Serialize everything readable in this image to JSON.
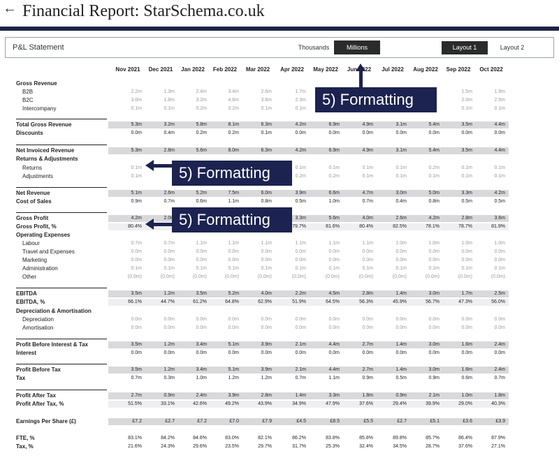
{
  "header": {
    "back_glyph": "←",
    "title": "Financial Report: StarSchema.co.uk"
  },
  "panel": {
    "title": "P&L Statement",
    "thousands": "Thousands",
    "millions": "Millions",
    "layout1": "Layout 1",
    "layout2": "Layout 2"
  },
  "columns": [
    "Nov 2021",
    "Dec 2021",
    "Jan 2022",
    "Feb 2022",
    "Mar 2022",
    "Apr 2022",
    "May 2022",
    "Jun 2022",
    "Jul 2022",
    "Aug 2022",
    "Sep 2022",
    "Oct 2022"
  ],
  "callouts": {
    "top": "5)  Formatting",
    "middle": "5)  Formatting",
    "lower": "5)  Formatting"
  },
  "colors": {
    "accent": "#1c2350",
    "shade": "#d9d9dc"
  },
  "rows": [
    {
      "label": "Gross Revenue",
      "style": "bold",
      "values": []
    },
    {
      "label": "B2B",
      "style": "sub",
      "values": [
        "2.2m",
        "1.3m",
        "2.4m",
        "3.4m",
        "2.6m",
        "1.7m",
        "",
        "",
        "",
        "",
        "1.5m",
        "1.9m"
      ]
    },
    {
      "label": "B2C",
      "style": "sub",
      "values": [
        "3.0m",
        "1.8m",
        "3.2m",
        "4.6m",
        "3.6m",
        "2.3m",
        "",
        "",
        "",
        "",
        "2.0m",
        "2.5m"
      ]
    },
    {
      "label": "Intercompany",
      "style": "sub",
      "values": [
        "0.1m",
        "0.1m",
        "0.2m",
        "0.2m",
        "0.1m",
        "0.1m",
        "",
        "",
        "",
        "",
        "0.1m",
        "0.1m"
      ]
    },
    {
      "label": "Total Gross Revenue",
      "style": "bold",
      "shade": true,
      "sep": true,
      "values": [
        "5.3m",
        "3.2m",
        "5.8m",
        "8.1m",
        "6.3m",
        "4.2m",
        "6.9m",
        "4.9m",
        "3.1m",
        "5.4m",
        "3.5m",
        "4.4m"
      ]
    },
    {
      "label": "Discounts",
      "style": "bold",
      "values": [
        "0.0m",
        "0.4m",
        "0.2m",
        "0.2m",
        "0.1m",
        "0.0m",
        "0.0m",
        "0.0m",
        "0.0m",
        "0.0m",
        "0.0m",
        "0.0m"
      ]
    },
    {
      "label": "Net Invoiced Revenue",
      "style": "bold",
      "shade": true,
      "sep": true,
      "values": [
        "5.3m",
        "2.8m",
        "5.6m",
        "8.0m",
        "6.3m",
        "4.2m",
        "6.9m",
        "4.9m",
        "3.1m",
        "5.4m",
        "3.5m",
        "4.4m"
      ]
    },
    {
      "label": "Returns & Adjustments",
      "style": "bold",
      "values": []
    },
    {
      "label": "Returns",
      "style": "sub",
      "values": [
        "0.1m",
        "",
        "",
        "",
        "",
        "0.1m",
        "0.1m",
        "0.1m",
        "0.1m",
        "0.2m",
        "0.1m",
        "0.1m"
      ]
    },
    {
      "label": "Adjustments",
      "style": "sub",
      "values": [
        "0.1m",
        "",
        "",
        "",
        "",
        "0.2m",
        "0.2m",
        "0.1m",
        "0.1m",
        "0.1m",
        "0.1m",
        "0.1m"
      ]
    },
    {
      "label": "Net Revenue",
      "style": "bold",
      "shade": true,
      "sep": true,
      "values": [
        "5.1m",
        "2.6m",
        "5.2m",
        "7.5m",
        "6.0m",
        "3.9m",
        "6.6m",
        "4.7m",
        "3.0m",
        "5.0m",
        "3.3m",
        "4.2m"
      ]
    },
    {
      "label": "Cost of Sales",
      "style": "bold",
      "values": [
        "0.9m",
        "0.7m",
        "0.6m",
        "1.1m",
        "0.8m",
        "0.5m",
        "1.0m",
        "0.7m",
        "0.4m",
        "0.8m",
        "0.5m",
        "0.5m"
      ]
    },
    {
      "label": "Gross Profit",
      "style": "bold",
      "shade": true,
      "sep": true,
      "values": [
        "4.2m",
        "2.0m",
        "",
        "",
        "",
        "3.3m",
        "5.6m",
        "4.0m",
        "2.6m",
        "4.2m",
        "2.8m",
        "3.6m"
      ]
    },
    {
      "label": "Gross Profit, %",
      "style": "bold",
      "shade": "light",
      "values": [
        "80.4%",
        "",
        "",
        "",
        "",
        "79.7%",
        "81.6%",
        "80.4%",
        "82.5%",
        "78.1%",
        "78.7%",
        "81.9%"
      ]
    },
    {
      "label": "Operating Expenses",
      "style": "bold",
      "values": []
    },
    {
      "label": "Labour",
      "style": "sub",
      "values": [
        "0.7m",
        "0.7m",
        "1.1m",
        "1.1m",
        "1.1m",
        "1.1m",
        "1.1m",
        "1.1m",
        "1.0m",
        "1.0m",
        "1.0m",
        "1.0m"
      ]
    },
    {
      "label": "Travel and Expenses",
      "style": "sub",
      "values": [
        "0.0m",
        "0.0m",
        "0.0m",
        "0.0m",
        "0.0m",
        "0.0m",
        "0.0m",
        "0.0m",
        "0.0m",
        "0.0m",
        "0.0m",
        "0.0m"
      ]
    },
    {
      "label": "Marketing",
      "style": "sub",
      "values": [
        "0.0m",
        "0.0m",
        "0.0m",
        "0.0m",
        "0.0m",
        "0.0m",
        "0.0m",
        "0.0m",
        "0.0m",
        "0.0m",
        "0.0m",
        "0.0m"
      ]
    },
    {
      "label": "Administration",
      "style": "sub",
      "values": [
        "0.1m",
        "0.1m",
        "0.1m",
        "0.1m",
        "0.1m",
        "0.1m",
        "0.1m",
        "0.1m",
        "0.1m",
        "0.1m",
        "0.1m",
        "0.1m"
      ]
    },
    {
      "label": "Other",
      "style": "sub",
      "values": [
        "(0.0m)",
        "(0.0m)",
        "(0.0m)",
        "(0.0m)",
        "(0.0m)",
        "(0.0m)",
        "(0.0m)",
        "(0.0m)",
        "(0.0m)",
        "(0.0m)",
        "(0.0m)",
        "(0.0m)"
      ]
    },
    {
      "label": "EBITDA",
      "style": "bold",
      "shade": true,
      "sep": true,
      "values": [
        "3.5m",
        "1.2m",
        "3.5m",
        "5.2m",
        "4.0m",
        "2.2m",
        "4.5m",
        "2.8m",
        "1.4m",
        "3.0m",
        "1.7m",
        "2.5m"
      ]
    },
    {
      "label": "EBITDA, %",
      "style": "bold",
      "shade": "light",
      "values": [
        "66.1%",
        "44.7%",
        "61.2%",
        "64.8%",
        "62.9%",
        "51.9%",
        "64.5%",
        "56.3%",
        "45.9%",
        "56.7%",
        "47.3%",
        "56.0%"
      ]
    },
    {
      "label": "Depreciation & Amortisation",
      "style": "bold",
      "values": []
    },
    {
      "label": "Depreciation",
      "style": "sub",
      "values": [
        "0.0m",
        "0.0m",
        "0.0m",
        "0.0m",
        "0.0m",
        "0.0m",
        "0.0m",
        "0.0m",
        "0.0m",
        "0.0m",
        "0.0m",
        "0.0m"
      ]
    },
    {
      "label": "Amortisation",
      "style": "sub",
      "values": [
        "0.0m",
        "0.0m",
        "0.0m",
        "0.0m",
        "0.0m",
        "0.0m",
        "0.0m",
        "0.0m",
        "0.0m",
        "0.0m",
        "0.0m",
        "0.0m"
      ]
    },
    {
      "label": "Profit Before Interest & Tax",
      "style": "bold",
      "shade": true,
      "sep": true,
      "values": [
        "3.5m",
        "1.2m",
        "3.4m",
        "5.1m",
        "3.9m",
        "2.1m",
        "4.4m",
        "2.7m",
        "1.4m",
        "3.0m",
        "1.6m",
        "2.4m"
      ]
    },
    {
      "label": "Interest",
      "style": "bold",
      "values": [
        "0.0m",
        "0.0m",
        "0.0m",
        "0.0m",
        "0.0m",
        "0.0m",
        "0.0m",
        "0.0m",
        "0.0m",
        "0.0m",
        "0.0m",
        "0.0m"
      ]
    },
    {
      "label": "Profit Before Tax",
      "style": "bold",
      "shade": true,
      "sep": true,
      "values": [
        "3.5m",
        "1.2m",
        "3.4m",
        "5.1m",
        "3.9m",
        "2.1m",
        "4.4m",
        "2.7m",
        "1.4m",
        "3.0m",
        "1.6m",
        "2.4m"
      ]
    },
    {
      "label": "Tax",
      "style": "bold",
      "values": [
        "0.7m",
        "0.3m",
        "1.0m",
        "1.2m",
        "1.2m",
        "0.7m",
        "1.1m",
        "0.9m",
        "0.5m",
        "0.9m",
        "0.6m",
        "0.7m"
      ]
    },
    {
      "label": "Profit After Tax",
      "style": "bold",
      "shade": true,
      "sep": true,
      "values": [
        "2.7m",
        "0.9m",
        "2.4m",
        "3.9m",
        "2.8m",
        "1.4m",
        "3.3m",
        "1.8m",
        "0.9m",
        "2.1m",
        "1.0m",
        "1.8m"
      ]
    },
    {
      "label": "Profit After Tax, %",
      "style": "bold",
      "shade": "light",
      "values": [
        "51.5%",
        "33.1%",
        "42.6%",
        "49.2%",
        "43.9%",
        "34.9%",
        "47.9%",
        "37.6%",
        "29.4%",
        "39.9%",
        "29.0%",
        "40.3%"
      ]
    },
    {
      "label": "Earnings Per Share (£)",
      "style": "bold",
      "shade": true,
      "values": [
        "£7.2",
        "£2.7",
        "£7.2",
        "£7.0",
        "£7.9",
        "£4.5",
        "£8.5",
        "£5.5",
        "£2.7",
        "£5.1",
        "£3.6",
        "£3.9"
      ]
    },
    {
      "label": "FTE, %",
      "style": "bold",
      "values": [
        "83.1%",
        "84.2%",
        "84.6%",
        "83.0%",
        "82.1%",
        "86.2%",
        "83.8%",
        "85.8%",
        "89.8%",
        "85.7%",
        "86.4%",
        "87.9%"
      ]
    },
    {
      "label": "Tax, %",
      "style": "bold",
      "values": [
        "21.6%",
        "24.3%",
        "29.6%",
        "23.5%",
        "29.7%",
        "31.7%",
        "25.3%",
        "32.4%",
        "34.5%",
        "28.7%",
        "37.6%",
        "27.1%"
      ]
    }
  ]
}
